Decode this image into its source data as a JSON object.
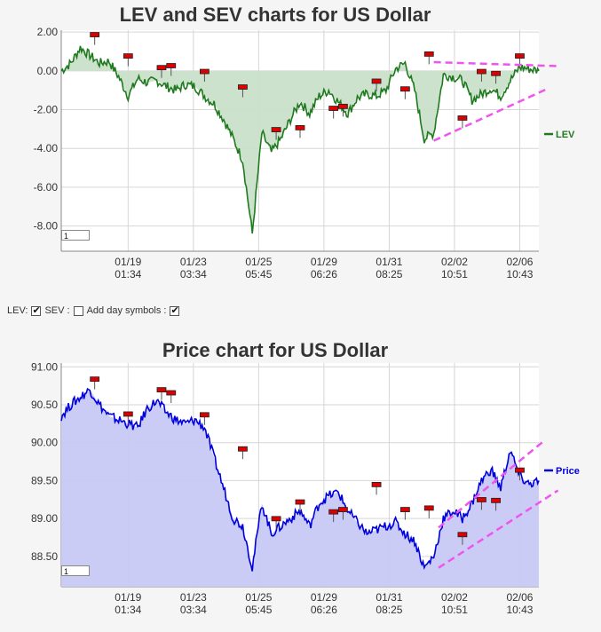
{
  "controls": {
    "lev_label": "LEV:",
    "lev_checked": true,
    "sev_label": "SEV :",
    "sev_checked": false,
    "add_day_label": "Add day symbols :",
    "add_day_checked": true
  },
  "chart_data": [
    {
      "type": "area",
      "title": "LEV and SEV charts for US Dollar",
      "legend": "LEV",
      "legend_placement": "right",
      "line_color": "#1f7a1f",
      "fill_color": "#c9e0c9",
      "ylim": [
        -9.3,
        2.1
      ],
      "yticks": [
        "2.00",
        "0.00",
        "-2.00",
        "-4.00",
        "-6.00",
        "-8.00"
      ],
      "ytick_values": [
        2,
        0,
        -2,
        -4,
        -6,
        -8
      ],
      "xtick_labels": [
        [
          "01/19",
          "01:34"
        ],
        [
          "01/23",
          "03:34"
        ],
        [
          "01/25",
          "05:45"
        ],
        [
          "01/29",
          "06:26"
        ],
        [
          "01/31",
          "08:25"
        ],
        [
          "02/02",
          "10:51"
        ],
        [
          "02/06",
          "10:43"
        ]
      ],
      "grid": true,
      "page_input": "1",
      "x": [
        0,
        2,
        4,
        6,
        8,
        10,
        12,
        14,
        16,
        18,
        20,
        22,
        24,
        26,
        28,
        30,
        32,
        34,
        36,
        38,
        40,
        42,
        44,
        46,
        48,
        50,
        52,
        54,
        56,
        58,
        60,
        62,
        64,
        66,
        68,
        70,
        72,
        74,
        76,
        78,
        80,
        82,
        84,
        86,
        88,
        90,
        92,
        94,
        96,
        98,
        100
      ],
      "values": [
        0.0,
        0.4,
        1.2,
        0.8,
        0.4,
        0.5,
        -0.3,
        -1.3,
        -0.4,
        -0.6,
        -0.5,
        -0.8,
        -1.0,
        -0.7,
        -0.8,
        -1.3,
        -1.7,
        -2.5,
        -3.5,
        -4.6,
        -8.4,
        -3.2,
        -4.2,
        -3.5,
        -2.5,
        -1.6,
        -2.2,
        -1.3,
        -1.0,
        -1.6,
        -2.2,
        -1.4,
        -1.2,
        -1.3,
        -1.0,
        0.1,
        0.4,
        -1.0,
        -3.5,
        -3.2,
        -0.2,
        -0.3,
        -0.5,
        -1.5,
        -1.2,
        -0.9,
        -1.3,
        -0.5,
        0.2,
        0.1,
        0.0
      ],
      "markers": [
        {
          "x": 7,
          "y": 1.8
        },
        {
          "x": 14,
          "y": 0.7
        },
        {
          "x": 21,
          "y": 0.1
        },
        {
          "x": 23,
          "y": 0.2
        },
        {
          "x": 30,
          "y": -0.1
        },
        {
          "x": 38,
          "y": -0.9
        },
        {
          "x": 45,
          "y": -3.1
        },
        {
          "x": 50,
          "y": -3.0
        },
        {
          "x": 57,
          "y": -2.0
        },
        {
          "x": 59,
          "y": -1.9
        },
        {
          "x": 66,
          "y": -0.6
        },
        {
          "x": 72,
          "y": -1.0
        },
        {
          "x": 77,
          "y": 0.8
        },
        {
          "x": 84,
          "y": -2.5
        },
        {
          "x": 88,
          "y": -0.1
        },
        {
          "x": 91,
          "y": -0.2
        },
        {
          "x": 96,
          "y": 0.7
        }
      ],
      "trend_lines": [
        {
          "from": [
            78,
            0.45
          ],
          "to": [
            104,
            0.25
          ]
        },
        {
          "from": [
            78,
            -3.6
          ],
          "to": [
            102,
            -0.9
          ]
        }
      ]
    },
    {
      "type": "area",
      "title": "Price chart for US Dollar",
      "legend": "Price",
      "legend_placement": "right",
      "line_color": "#0000dd",
      "fill_color": "#c7c9f5",
      "ylim": [
        88.1,
        91.05
      ],
      "yticks": [
        "91.00",
        "90.50",
        "90.00",
        "89.50",
        "89.00",
        "88.50"
      ],
      "ytick_values": [
        91.0,
        90.5,
        90.0,
        89.5,
        89.0,
        88.5
      ],
      "xtick_labels": [
        [
          "01/19",
          "01:34"
        ],
        [
          "01/23",
          "03:34"
        ],
        [
          "01/25",
          "05:45"
        ],
        [
          "01/29",
          "06:26"
        ],
        [
          "01/31",
          "08:25"
        ],
        [
          "02/02",
          "10:51"
        ],
        [
          "02/06",
          "10:43"
        ]
      ],
      "grid": true,
      "page_input": "1",
      "x": [
        0,
        2,
        4,
        6,
        8,
        10,
        12,
        14,
        16,
        18,
        20,
        22,
        24,
        26,
        28,
        30,
        32,
        34,
        36,
        38,
        40,
        42,
        44,
        46,
        48,
        50,
        52,
        54,
        56,
        58,
        60,
        62,
        64,
        66,
        68,
        70,
        72,
        74,
        76,
        78,
        80,
        82,
        84,
        86,
        88,
        90,
        92,
        94,
        96,
        98,
        100
      ],
      "values": [
        90.35,
        90.5,
        90.6,
        90.7,
        90.5,
        90.35,
        90.3,
        90.25,
        90.2,
        90.45,
        90.55,
        90.4,
        90.3,
        90.25,
        90.3,
        90.2,
        89.8,
        89.4,
        89.0,
        88.9,
        88.35,
        89.2,
        88.8,
        88.9,
        89.0,
        89.1,
        88.9,
        89.2,
        89.3,
        89.35,
        89.1,
        88.95,
        88.8,
        88.85,
        88.9,
        88.95,
        88.8,
        88.7,
        88.35,
        88.5,
        89.0,
        89.1,
        89.0,
        89.2,
        89.5,
        89.65,
        89.4,
        89.9,
        89.55,
        89.45,
        89.5
      ],
      "markers": [
        {
          "x": 7,
          "y": 90.82
        },
        {
          "x": 14,
          "y": 90.36
        },
        {
          "x": 21,
          "y": 90.68
        },
        {
          "x": 23,
          "y": 90.64
        },
        {
          "x": 30,
          "y": 90.35
        },
        {
          "x": 38,
          "y": 89.9
        },
        {
          "x": 45,
          "y": 88.98
        },
        {
          "x": 50,
          "y": 89.2
        },
        {
          "x": 57,
          "y": 89.07
        },
        {
          "x": 59,
          "y": 89.1
        },
        {
          "x": 66,
          "y": 89.43
        },
        {
          "x": 72,
          "y": 89.1
        },
        {
          "x": 77,
          "y": 89.12
        },
        {
          "x": 84,
          "y": 88.77
        },
        {
          "x": 88,
          "y": 89.23
        },
        {
          "x": 91,
          "y": 89.22
        },
        {
          "x": 96,
          "y": 89.62
        }
      ],
      "trend_lines": [
        {
          "from": [
            79,
            88.88
          ],
          "to": [
            101,
            90.02
          ]
        },
        {
          "from": [
            79,
            88.35
          ],
          "to": [
            104,
            89.37
          ]
        }
      ]
    }
  ]
}
